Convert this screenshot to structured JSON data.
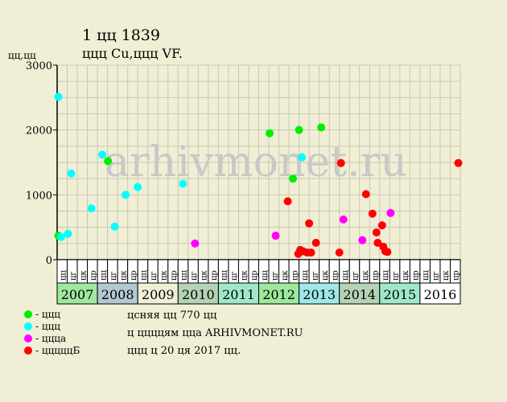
{
  "header": {
    "title": "1  цц 1839",
    "subtitle": "ццц Cu,ццц VF.",
    "y_unit": "цц,цц"
  },
  "watermark": "arhivmonet.ru",
  "legend": [
    {
      "label": "- ццц",
      "color": "#00ee00"
    },
    {
      "label": "- ццц",
      "color": "#00ffff"
    },
    {
      "label": "- ццца",
      "color": "#ff00ff"
    },
    {
      "label": "- цццццБ",
      "color": "#ff0000"
    }
  ],
  "notes": [
    "цcняя цц 770 цц",
    "ц ццццям цца ARHIVMONET.RU",
    "ццц ц 20 ця 2017 цц."
  ],
  "colors": {
    "background": "#f0efd6",
    "grid": "#c8c8b0",
    "axis": "#000000",
    "watermark": "#c8c8c8"
  },
  "chart_data": {
    "type": "scatter",
    "ylim": [
      0,
      3000
    ],
    "yticks": [
      0,
      1000,
      2000,
      3000
    ],
    "grid": true,
    "quarter_labels": [
      "цц",
      "цг",
      "цк",
      "цр"
    ],
    "years": [
      {
        "label": "2007",
        "color": "#9ee89e"
      },
      {
        "label": "2008",
        "color": "#b4c8d2"
      },
      {
        "label": "2009",
        "color": "#f0efd6"
      },
      {
        "label": "2010",
        "color": "#b4d2b4"
      },
      {
        "label": "2011",
        "color": "#9ee8c8"
      },
      {
        "label": "2012",
        "color": "#9ee89e"
      },
      {
        "label": "2013",
        "color": "#9ee8e8"
      },
      {
        "label": "2014",
        "color": "#b4d2b4"
      },
      {
        "label": "2015",
        "color": "#9ee8c8"
      },
      {
        "label": "2016",
        "color": "#ffffff"
      }
    ],
    "series": [
      {
        "color": "#00ee00",
        "points": [
          {
            "x": 2007.03,
            "y": 370
          },
          {
            "x": 2008.26,
            "y": 1520
          },
          {
            "x": 2012.27,
            "y": 1950
          },
          {
            "x": 2012.85,
            "y": 1250
          },
          {
            "x": 2013.0,
            "y": 2000
          },
          {
            "x": 2013.55,
            "y": 2040
          }
        ]
      },
      {
        "color": "#00ffff",
        "points": [
          {
            "x": 2007.03,
            "y": 2510
          },
          {
            "x": 2007.1,
            "y": 350
          },
          {
            "x": 2007.27,
            "y": 400
          },
          {
            "x": 2007.35,
            "y": 1330
          },
          {
            "x": 2007.85,
            "y": 790
          },
          {
            "x": 2008.12,
            "y": 1620
          },
          {
            "x": 2008.43,
            "y": 510
          },
          {
            "x": 2008.7,
            "y": 1000
          },
          {
            "x": 2009.0,
            "y": 1120
          },
          {
            "x": 2010.12,
            "y": 1170
          },
          {
            "x": 2013.07,
            "y": 1580
          }
        ]
      },
      {
        "color": "#ff00ff",
        "points": [
          {
            "x": 2010.42,
            "y": 250
          },
          {
            "x": 2012.42,
            "y": 370
          },
          {
            "x": 2014.1,
            "y": 620
          },
          {
            "x": 2014.57,
            "y": 300
          },
          {
            "x": 2015.27,
            "y": 720
          }
        ]
      },
      {
        "color": "#ff0000",
        "points": [
          {
            "x": 2012.72,
            "y": 900
          },
          {
            "x": 2012.98,
            "y": 90
          },
          {
            "x": 2013.03,
            "y": 150
          },
          {
            "x": 2013.1,
            "y": 130
          },
          {
            "x": 2013.2,
            "y": 110
          },
          {
            "x": 2013.25,
            "y": 560
          },
          {
            "x": 2013.3,
            "y": 110
          },
          {
            "x": 2013.42,
            "y": 260
          },
          {
            "x": 2014.0,
            "y": 110
          },
          {
            "x": 2014.04,
            "y": 1490
          },
          {
            "x": 2014.66,
            "y": 1010
          },
          {
            "x": 2014.82,
            "y": 710
          },
          {
            "x": 2014.92,
            "y": 420
          },
          {
            "x": 2014.95,
            "y": 260
          },
          {
            "x": 2015.06,
            "y": 530
          },
          {
            "x": 2015.09,
            "y": 200
          },
          {
            "x": 2015.14,
            "y": 130
          },
          {
            "x": 2015.19,
            "y": 120
          },
          {
            "x": 2016.95,
            "y": 1490
          }
        ]
      }
    ]
  }
}
